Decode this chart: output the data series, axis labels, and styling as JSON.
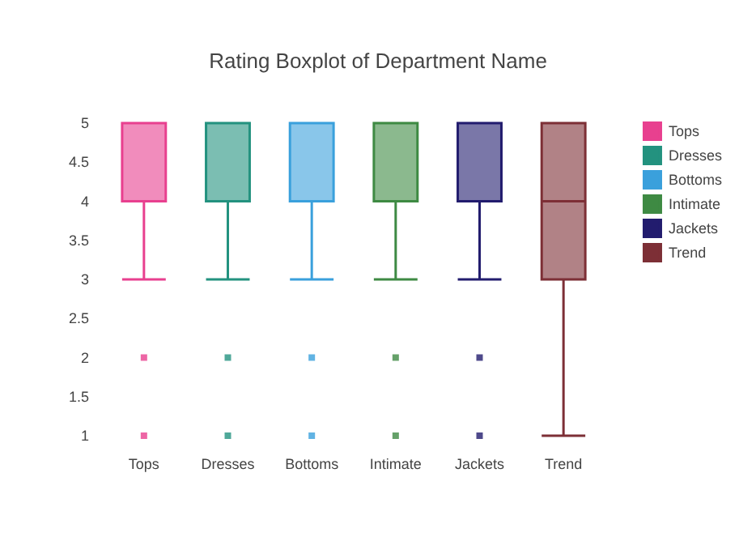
{
  "chart_data": {
    "type": "box",
    "title": "Rating Boxplot of Department Name",
    "categories": [
      "Tops",
      "Dresses",
      "Bottoms",
      "Intimate",
      "Jackets",
      "Trend"
    ],
    "series": [
      {
        "name": "Tops",
        "color": "#e8408f",
        "boxes": [
          {
            "low": 3,
            "q1": 4,
            "median": 5,
            "q3": 5,
            "high": 5,
            "outliers": [
              1,
              2
            ]
          },
          null,
          null,
          null,
          null,
          null
        ]
      },
      {
        "name": "Dresses",
        "color": "#23927f",
        "boxes": [
          null,
          {
            "low": 3,
            "q1": 4,
            "median": 5,
            "q3": 5,
            "high": 5,
            "outliers": [
              1,
              2
            ]
          },
          null,
          null,
          null,
          null
        ]
      },
      {
        "name": "Bottoms",
        "color": "#3aa0dc",
        "boxes": [
          null,
          null,
          {
            "low": 3,
            "q1": 4,
            "median": 5,
            "q3": 5,
            "high": 5,
            "outliers": [
              1,
              2
            ]
          },
          null,
          null,
          null
        ]
      },
      {
        "name": "Intimate",
        "color": "#3e8a43",
        "boxes": [
          null,
          null,
          null,
          {
            "low": 3,
            "q1": 4,
            "median": 5,
            "q3": 5,
            "high": 5,
            "outliers": [
              1,
              2
            ]
          },
          null,
          null
        ]
      },
      {
        "name": "Jackets",
        "color": "#221c6e",
        "boxes": [
          null,
          null,
          null,
          null,
          {
            "low": 3,
            "q1": 4,
            "median": 5,
            "q3": 5,
            "high": 5,
            "outliers": [
              1,
              2
            ]
          },
          null
        ]
      },
      {
        "name": "Trend",
        "color": "#7d2f36",
        "boxes": [
          null,
          null,
          null,
          null,
          null,
          {
            "low": 1,
            "q1": 3,
            "median": 4,
            "q3": 5,
            "high": 5
          }
        ]
      }
    ],
    "ylim": [
      1,
      5
    ],
    "yticks": [
      1,
      1.5,
      2,
      2.5,
      3,
      3.5,
      4,
      4.5,
      5
    ],
    "grid": false,
    "legend": "top right",
    "marker": "square"
  }
}
